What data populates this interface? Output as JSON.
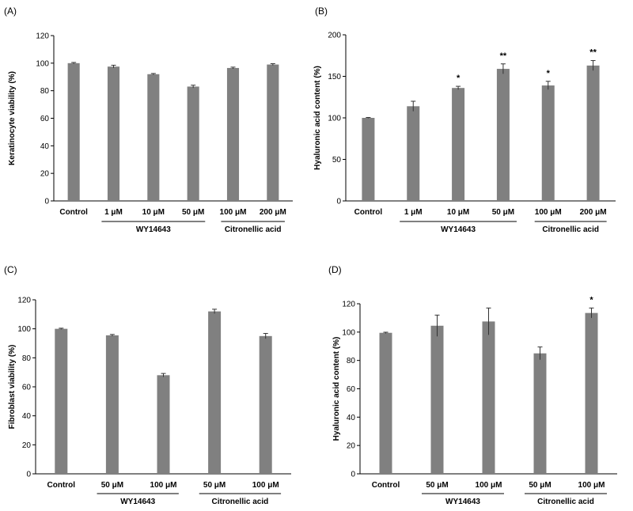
{
  "chart_data": [
    {
      "type": "bar",
      "panel": "(A)",
      "ylabel": "Keratinocyte viability (%)",
      "ylim": [
        0,
        120
      ],
      "yticks": [
        0,
        20,
        40,
        60,
        80,
        100,
        120
      ],
      "categories": [
        "Control",
        "1 μM",
        "10 μM",
        "50 μM",
        "100 μM",
        "200 μM"
      ],
      "values": [
        100,
        97.5,
        92,
        83,
        96.5,
        99
      ],
      "errors": [
        0.5,
        1,
        0.5,
        1,
        0.6,
        0.6
      ],
      "significance": [
        "",
        "",
        "",
        "",
        "",
        ""
      ],
      "groups": [
        {
          "label": "WY14643",
          "from": 1,
          "to": 3
        },
        {
          "label": "Citronellic acid",
          "from": 4,
          "to": 5
        }
      ],
      "bar_color": "#808080"
    },
    {
      "type": "bar",
      "panel": "(B)",
      "ylabel": "Hyaluronic acid content (%)",
      "ylim": [
        0,
        200
      ],
      "yticks": [
        0,
        50,
        100,
        150,
        200
      ],
      "categories": [
        "Control",
        "1 μM",
        "10 μM",
        "50 μM",
        "100 μM",
        "200 μM"
      ],
      "values": [
        100,
        114,
        136,
        159,
        139,
        163
      ],
      "errors": [
        0.5,
        6,
        2,
        6,
        5,
        6
      ],
      "significance": [
        "",
        "",
        "*",
        "**",
        "*",
        "**"
      ],
      "groups": [
        {
          "label": "WY14643",
          "from": 1,
          "to": 3
        },
        {
          "label": "Citronellic acid",
          "from": 4,
          "to": 5
        }
      ],
      "bar_color": "#808080"
    },
    {
      "type": "bar",
      "panel": "(C)",
      "ylabel": "Fibroblast viability (%)",
      "ylim": [
        0,
        120
      ],
      "yticks": [
        0,
        20,
        40,
        60,
        80,
        100,
        120
      ],
      "categories": [
        "Control",
        "50 μM",
        "100 μM",
        "50 μM",
        "100 μM"
      ],
      "values": [
        100,
        95.5,
        68,
        112,
        95
      ],
      "errors": [
        0.4,
        0.6,
        1.2,
        1.5,
        1.8
      ],
      "significance": [
        "",
        "",
        "",
        "",
        ""
      ],
      "groups": [
        {
          "label": "WY14643",
          "from": 1,
          "to": 2
        },
        {
          "label": "Citronellic acid",
          "from": 3,
          "to": 4
        }
      ],
      "bar_color": "#808080"
    },
    {
      "type": "bar",
      "panel": "(D)",
      "ylabel": "Hyaluronic acid content (%)",
      "ylim": [
        0,
        120
      ],
      "yticks": [
        0,
        20,
        40,
        60,
        80,
        100,
        120
      ],
      "categories": [
        "Control",
        "50 μM",
        "100 μM",
        "50 μM",
        "100 μM"
      ],
      "values": [
        99.5,
        104.5,
        107.5,
        85,
        113.5
      ],
      "errors": [
        0.4,
        7.5,
        9.5,
        4.5,
        3.5
      ],
      "significance": [
        "",
        "",
        "",
        "",
        "*"
      ],
      "groups": [
        {
          "label": "WY14643",
          "from": 1,
          "to": 2
        },
        {
          "label": "Citronellic acid",
          "from": 3,
          "to": 4
        }
      ],
      "bar_color": "#808080"
    }
  ]
}
